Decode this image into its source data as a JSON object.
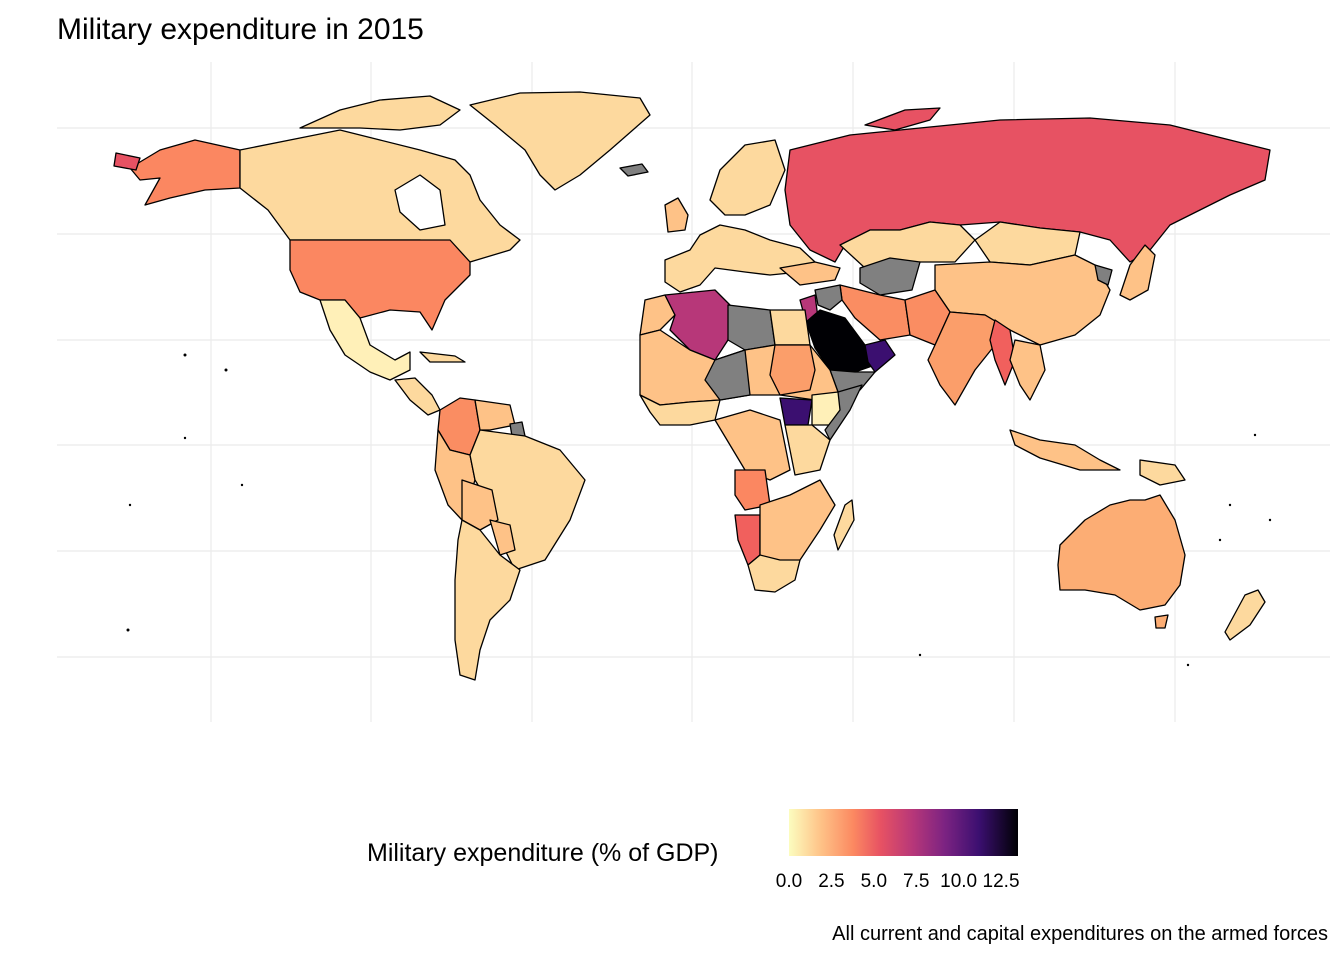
{
  "title": "Military expenditure in 2015",
  "caption": "All current and capital expenditures on the armed forces",
  "legend": {
    "title": "Military expenditure (% of GDP)",
    "ticks": [
      "0.0",
      "2.5",
      "5.0",
      "7.5",
      "10.0",
      "12.5"
    ],
    "tick_values": [
      0,
      2.5,
      5,
      7.5,
      10,
      12.5
    ],
    "range": [
      0,
      13.5
    ],
    "palette": "magma (reversed)",
    "colors": [
      "#fcfdbf",
      "#fec287",
      "#fc8961",
      "#e75263",
      "#b73779",
      "#7c2382",
      "#3b0f70",
      "#000004"
    ],
    "missing_color": "#808080"
  },
  "chart_data": {
    "type": "choropleth",
    "metric": "Military expenditure (% of GDP)",
    "year": 2015,
    "grid": true,
    "legend_position": "bottom",
    "regions": [
      {
        "name": "Saudi Arabia",
        "value": 13.3
      },
      {
        "name": "Oman",
        "value": 12.0
      },
      {
        "name": "South Sudan",
        "value": 11.0
      },
      {
        "name": "Algeria",
        "value": 6.3
      },
      {
        "name": "Russia",
        "value": 4.9
      },
      {
        "name": "Israel",
        "value": 5.6
      },
      {
        "name": "Myanmar",
        "value": 4.1
      },
      {
        "name": "Namibia",
        "value": 4.0
      },
      {
        "name": "Angola",
        "value": 3.5
      },
      {
        "name": "United States",
        "value": 3.3
      },
      {
        "name": "Colombia",
        "value": 3.2
      },
      {
        "name": "India",
        "value": 2.4
      },
      {
        "name": "China",
        "value": 1.9
      },
      {
        "name": "Australia",
        "value": 1.9
      },
      {
        "name": "Canada",
        "value": 1.0
      },
      {
        "name": "Brazil",
        "value": 1.3
      },
      {
        "name": "Mexico",
        "value": 0.5
      },
      {
        "name": "Kazakhstan",
        "value": 0.9
      },
      {
        "name": "Mongolia",
        "value": 0.9
      },
      {
        "name": "Libya",
        "value": null
      },
      {
        "name": "Syria",
        "value": null
      },
      {
        "name": "Yemen",
        "value": null
      },
      {
        "name": "Somalia",
        "value": null
      },
      {
        "name": "Turkmenistan",
        "value": null
      },
      {
        "name": "Uzbekistan",
        "value": null
      },
      {
        "name": "North Korea",
        "value": null
      }
    ]
  }
}
